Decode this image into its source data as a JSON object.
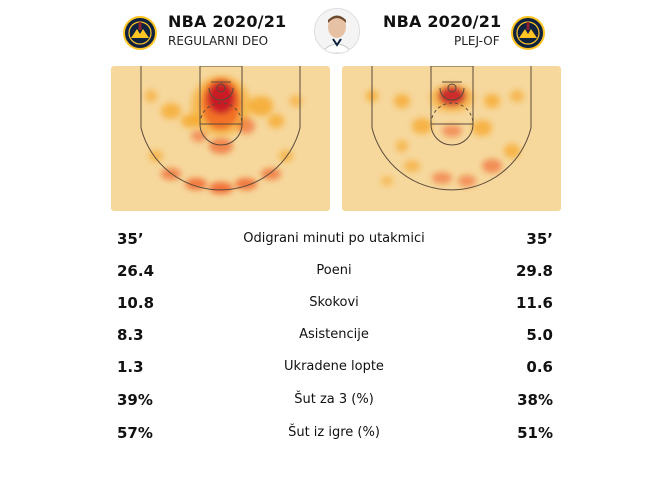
{
  "left": {
    "title": "NBA 2020/21",
    "subtitle": "REGULARNI DEO"
  },
  "right": {
    "title": "NBA 2020/21",
    "subtitle": "PLEJ-OF"
  },
  "colors": {
    "court": "#f6d79c",
    "heat_hot": "#c0001b",
    "heat_mid": "#ef4b10",
    "heat_warm": "#f6a21a",
    "lines": "#5a4a3a"
  },
  "icons": {
    "logo": "denver-nuggets-logo",
    "player": "player-headshot"
  },
  "stats": [
    {
      "label": "Odigrani minuti po utakmici",
      "left": "35’",
      "right": "35’"
    },
    {
      "label": "Poeni",
      "left": "26.4",
      "right": "29.8"
    },
    {
      "label": "Skokovi",
      "left": "10.8",
      "right": "11.6"
    },
    {
      "label": "Asistencije",
      "left": "8.3",
      "right": "5.0"
    },
    {
      "label": "Ukradene lopte",
      "left": "1.3",
      "right": "0.6"
    },
    {
      "label": "Šut za 3 (%)",
      "left": "39%",
      "right": "38%"
    },
    {
      "label": "Šut iz igre (%)",
      "left": "57%",
      "right": "51%"
    }
  ]
}
